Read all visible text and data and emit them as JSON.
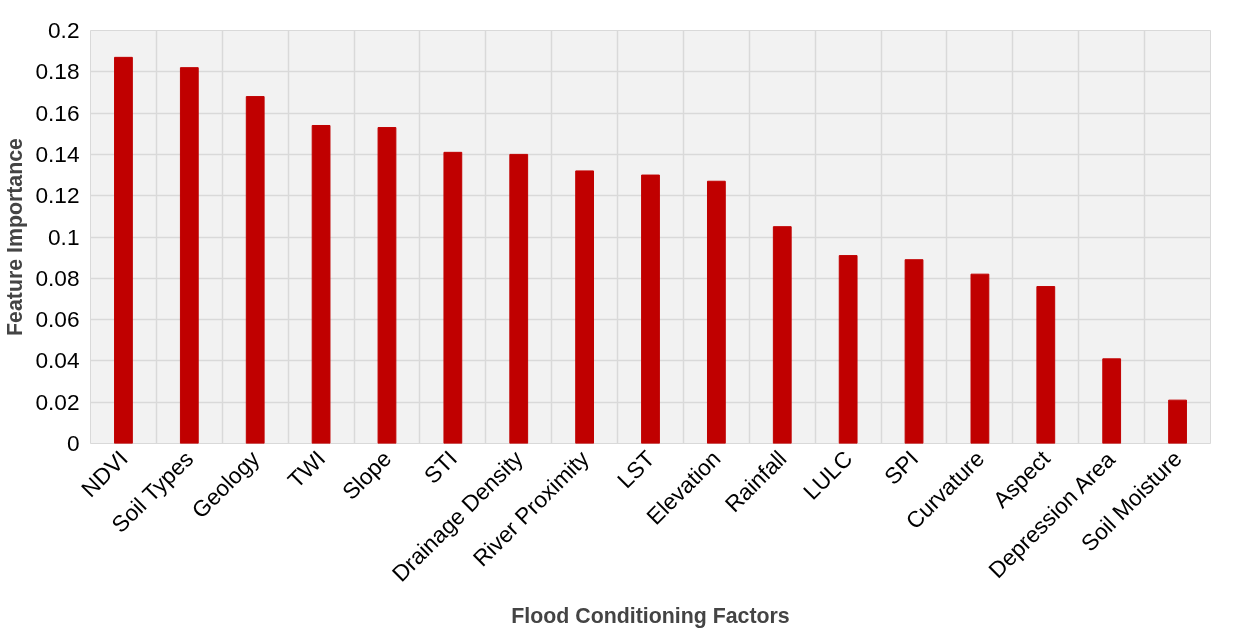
{
  "chart_data": {
    "type": "bar",
    "xlabel": "Flood Conditioning Factors",
    "ylabel": "Feature Importance",
    "categories": [
      "NDVI",
      "Soil Types",
      "Geology",
      "TWI",
      "Slope",
      "STI",
      "Drainage Density",
      "River Proximity",
      "LST",
      "Elevation",
      "Rainfall",
      "LULC",
      "SPI",
      "Curvature",
      "Aspect",
      "Depression Area",
      "Soil Moisture"
    ],
    "values": [
      0.187,
      0.182,
      0.168,
      0.154,
      0.153,
      0.141,
      0.14,
      0.132,
      0.13,
      0.127,
      0.105,
      0.091,
      0.089,
      0.082,
      0.076,
      0.041,
      0.021
    ],
    "color": "#c00000",
    "ylim": [
      0,
      0.2
    ],
    "yticks": [
      0,
      0.02,
      0.04,
      0.06,
      0.08,
      0.1,
      0.12,
      0.14,
      0.16,
      0.18,
      0.2
    ],
    "grid": true
  }
}
